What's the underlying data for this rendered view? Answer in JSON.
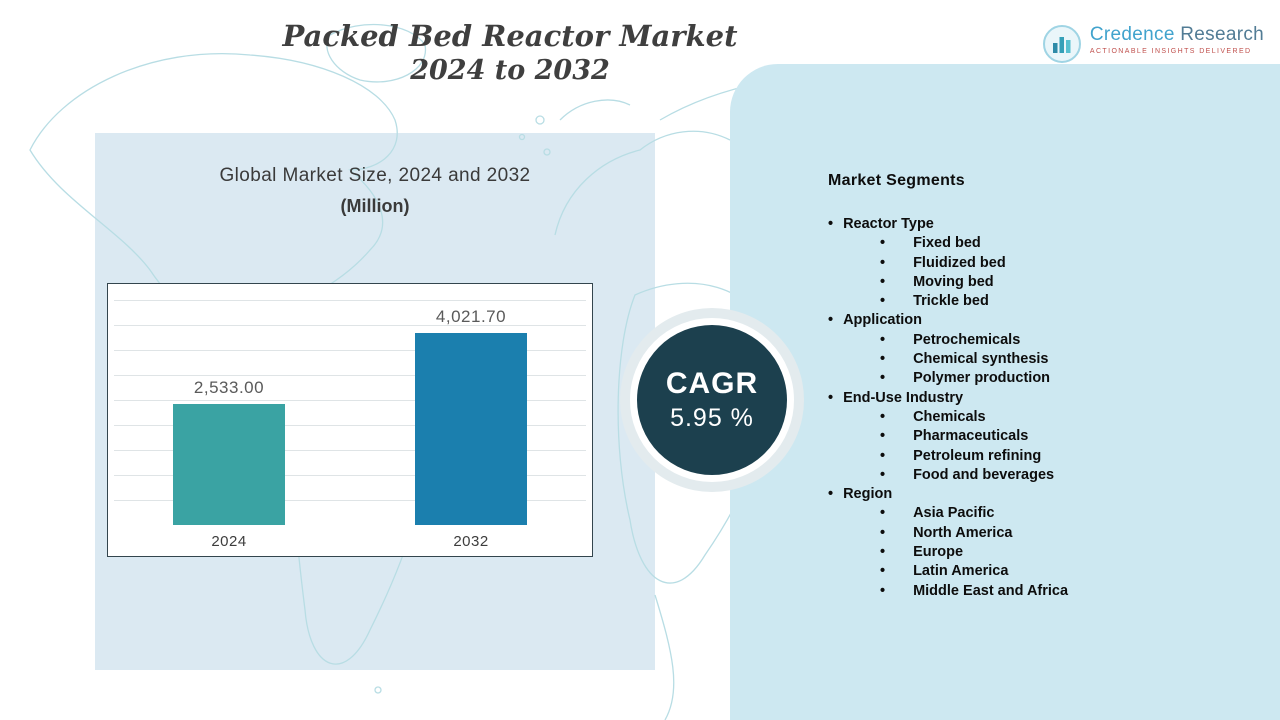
{
  "title": {
    "line1": "Packed Bed Reactor Market",
    "line2": "2024 to 2032"
  },
  "logo": {
    "brand_first": "Credence",
    "brand_second": " Research",
    "tagline": "Actionable Insights Delivered"
  },
  "chart_panel": {
    "title": "Global Market Size, 2024 and 2032",
    "subtitle": "(Million)"
  },
  "cagr": {
    "label": "CAGR",
    "value": "5.95 %"
  },
  "segments": {
    "heading": "Market Segments",
    "groups": [
      {
        "label": "Reactor Type",
        "items": [
          "Fixed bed",
          "Fluidized bed",
          "Moving bed",
          "Trickle bed"
        ]
      },
      {
        "label": "Application",
        "items": [
          "Petrochemicals",
          "Chemical synthesis",
          "Polymer production"
        ]
      },
      {
        "label": "End-Use Industry",
        "items": [
          "Chemicals",
          "Pharmaceuticals",
          "Petroleum refining",
          "Food and beverages"
        ]
      },
      {
        "label": "Region",
        "items": [
          "Asia Pacific",
          "North America",
          "Europe",
          "Latin America",
          "Middle East and Africa"
        ]
      }
    ]
  },
  "chart_data": {
    "type": "bar",
    "title": "Global Market Size, 2024 and 2032 (Million)",
    "categories": [
      "2024",
      "2032"
    ],
    "values": [
      2533.0,
      4021.7
    ],
    "value_labels": [
      "2,533.00",
      "4,021.70"
    ],
    "xlabel": "",
    "ylabel": "",
    "ylim": [
      0,
      4500
    ],
    "grid": true,
    "legend": false,
    "colors": [
      "#3aa3a3",
      "#1b7fae"
    ]
  }
}
